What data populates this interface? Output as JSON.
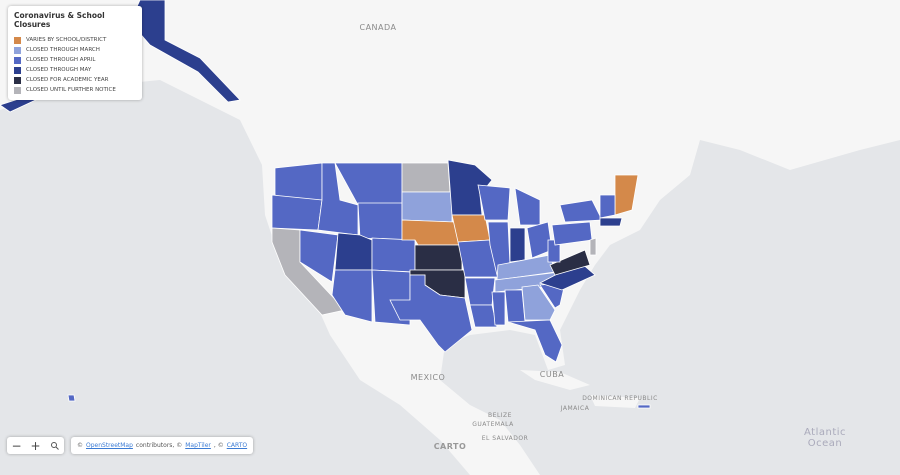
{
  "legend": {
    "title": "Coronavirus & School Closures",
    "items": [
      {
        "label": "VARIES BY SCHOOL/DISTRICT",
        "color": "#d4894a"
      },
      {
        "label": "CLOSED THROUGH MARCH",
        "color": "#8fa2db"
      },
      {
        "label": "CLOSED THROUGH APRIL",
        "color": "#5468c4"
      },
      {
        "label": "CLOSED THROUGH MAY",
        "color": "#2c3f8e"
      },
      {
        "label": "CLOSED FOR ACADEMIC YEAR",
        "color": "#2a2e45"
      },
      {
        "label": "CLOSED UNTIL FURTHER NOTICE",
        "color": "#b4b4b9"
      }
    ]
  },
  "place_labels": {
    "canada": "CANADA",
    "mexico": "MEXICO",
    "cuba": "CUBA",
    "jamaica": "JAMAICA",
    "dominican": "DOMINICAN REPUBLIC",
    "belize": "BELIZE",
    "guatemala": "GUATEMALA",
    "salvador": "EL SALVADOR",
    "atlantic": "Atlantic",
    "ocean": "Ocean",
    "carto": "CARTO"
  },
  "controls": {
    "zoom_out": "−",
    "zoom_in": "+"
  },
  "attribution": {
    "prefix": "©",
    "osm": "OpenStreetMap",
    "mid": "contributors, ©",
    "maptiler": "MapTiler",
    "sep": ", ©",
    "carto": "CARTO"
  }
}
